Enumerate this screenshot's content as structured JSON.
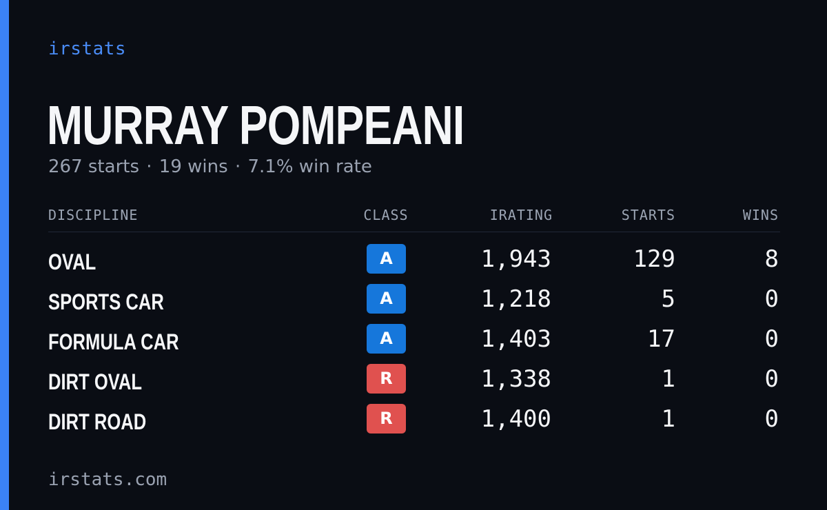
{
  "brand": {
    "label": "irstats"
  },
  "player": {
    "name": "MURRAY POMPEANI",
    "starts_text": "267 starts",
    "wins_text": "19 wins",
    "winrate_text": "7.1% win rate",
    "separator": "·"
  },
  "table": {
    "headers": {
      "discipline": "DISCIPLINE",
      "class": "CLASS",
      "irating": "IRATING",
      "starts": "STARTS",
      "wins": "WINS"
    },
    "rows": [
      {
        "discipline": "OVAL",
        "class": "A",
        "class_color": "#1677db",
        "irating": "1,943",
        "starts": "129",
        "wins": "8"
      },
      {
        "discipline": "SPORTS CAR",
        "class": "A",
        "class_color": "#1677db",
        "irating": "1,218",
        "starts": "5",
        "wins": "0"
      },
      {
        "discipline": "FORMULA CAR",
        "class": "A",
        "class_color": "#1677db",
        "irating": "1,403",
        "starts": "17",
        "wins": "0"
      },
      {
        "discipline": "DIRT OVAL",
        "class": "R",
        "class_color": "#e0514f",
        "irating": "1,338",
        "starts": "1",
        "wins": "0"
      },
      {
        "discipline": "DIRT ROAD",
        "class": "R",
        "class_color": "#e0514f",
        "irating": "1,400",
        "starts": "1",
        "wins": "0"
      }
    ]
  },
  "footer": {
    "label": "irstats.com"
  },
  "colors": {
    "background": "#0a0d14",
    "accent": "#3b82f6",
    "brand_text": "#4a8cf7",
    "muted_text": "#9aa2b1",
    "primary_text": "#f5f6f8"
  }
}
